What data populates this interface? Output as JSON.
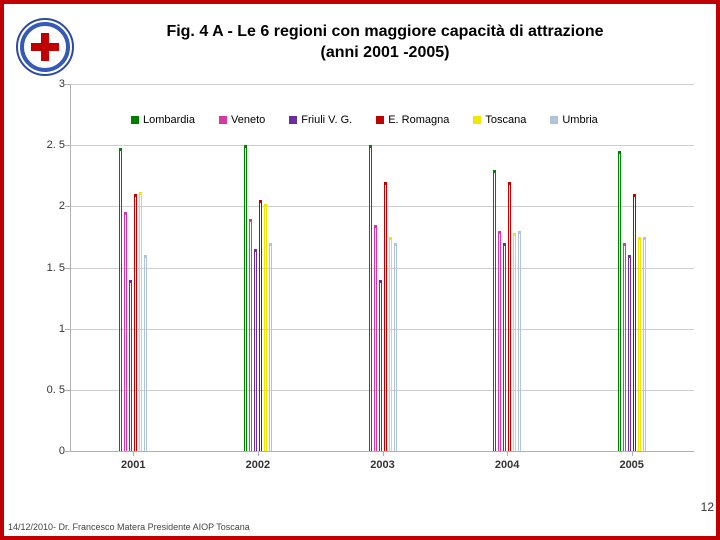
{
  "title_line1": "Fig. 4 A - Le 6 regioni con maggiore capacità di attrazione",
  "title_line2": "(anni 2001 -2005)",
  "page_number": "12",
  "footer": "14/12/2010- Dr. Francesco Matera Presidente AIOP Toscana",
  "chart": {
    "type": "bar",
    "ymin": 0,
    "ymax": 3,
    "ytick_step": 0.5,
    "yticks": [
      "0",
      "0. 5",
      "1",
      "1. 5",
      "2",
      "2. 5",
      "3"
    ],
    "grid_color": "#cfcfcf",
    "axis_color": "#b0b0b0",
    "background_color": "#ffffff",
    "categories": [
      "2001",
      "2002",
      "2003",
      "2004",
      "2005"
    ],
    "series": [
      {
        "name": "Lombardia",
        "color": "#008000",
        "values": [
          2.48,
          2.5,
          2.5,
          2.3,
          2.45
        ]
      },
      {
        "name": "Veneto",
        "color": "#d63aa2",
        "values": [
          1.95,
          1.9,
          1.85,
          1.8,
          1.7
        ]
      },
      {
        "name": "Friuli V. G.",
        "color": "#6a2ea0",
        "values": [
          1.4,
          1.65,
          1.4,
          1.7,
          1.6
        ]
      },
      {
        "name": "E. Romagna",
        "color": "#c00000",
        "values": [
          2.1,
          2.05,
          2.2,
          2.2,
          2.1
        ]
      },
      {
        "name": "Toscana",
        "color": "#f2e600",
        "values": [
          2.12,
          2.02,
          1.75,
          1.78,
          1.75
        ]
      },
      {
        "name": "Umbria",
        "color": "#b0c4de",
        "values": [
          1.6,
          1.7,
          1.7,
          1.8,
          1.75
        ]
      }
    ],
    "label_fontsize": 11,
    "legend_fontsize": 11
  }
}
